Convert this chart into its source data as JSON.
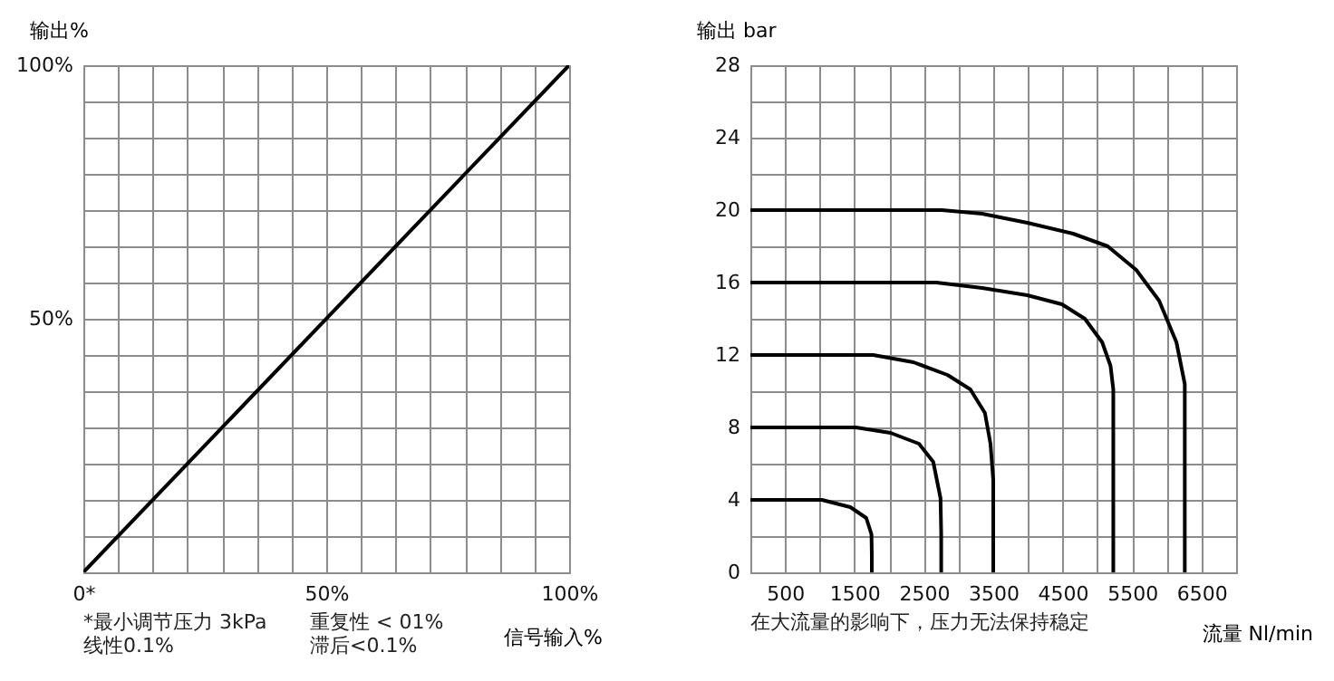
{
  "chart_data": [
    {
      "type": "line",
      "xlabel": "信号输入%",
      "ylabel": "输出%",
      "annotations": [
        "*最小调节压力 3kPa",
        "线性0.1%",
        "重复性 < 01%",
        "滞后<0.1%"
      ],
      "xlim": [
        0,
        100
      ],
      "ylim": [
        0,
        100
      ],
      "xticks": [
        {
          "value": 0,
          "label": "0*"
        },
        {
          "value": 7.1,
          "label": null
        },
        {
          "value": 14.3,
          "label": null
        },
        {
          "value": 21.4,
          "label": null
        },
        {
          "value": 28.6,
          "label": null
        },
        {
          "value": 35.7,
          "label": null
        },
        {
          "value": 42.9,
          "label": null
        },
        {
          "value": 50,
          "label": "50%"
        },
        {
          "value": 57.1,
          "label": null
        },
        {
          "value": 64.3,
          "label": null
        },
        {
          "value": 71.4,
          "label": null
        },
        {
          "value": 78.6,
          "label": null
        },
        {
          "value": 85.7,
          "label": null
        },
        {
          "value": 92.9,
          "label": null
        },
        {
          "value": 100,
          "label": "100%"
        }
      ],
      "yticks": [
        {
          "value": 0,
          "label": null
        },
        {
          "value": 7.1,
          "label": null
        },
        {
          "value": 14.3,
          "label": null
        },
        {
          "value": 21.4,
          "label": null
        },
        {
          "value": 28.6,
          "label": null
        },
        {
          "value": 35.7,
          "label": null
        },
        {
          "value": 42.9,
          "label": null
        },
        {
          "value": 50,
          "label": "50%"
        },
        {
          "value": 57.1,
          "label": null
        },
        {
          "value": 64.3,
          "label": null
        },
        {
          "value": 71.4,
          "label": null
        },
        {
          "value": 78.6,
          "label": null
        },
        {
          "value": 85.7,
          "label": null
        },
        {
          "value": 92.9,
          "label": null
        },
        {
          "value": 100,
          "label": "100%"
        }
      ],
      "grid": true,
      "marker": "none",
      "series": [
        {
          "color": "#000000",
          "x": [
            0,
            100
          ],
          "values": [
            0,
            100
          ]
        }
      ]
    },
    {
      "type": "line",
      "xlabel": "流量 Nl/min",
      "ylabel": "输出 bar",
      "annotations": [
        "在大流量的影响下，压力无法保持稳定"
      ],
      "xlim": [
        0,
        7000
      ],
      "ylim": [
        0,
        28
      ],
      "xticks": [
        {
          "value": 0,
          "label": null
        },
        500,
        {
          "value": 1000,
          "label": null
        },
        1500,
        {
          "value": 2000,
          "label": null
        },
        2500,
        {
          "value": 3000,
          "label": null
        },
        3500,
        {
          "value": 4000,
          "label": null
        },
        4500,
        {
          "value": 5000,
          "label": null
        },
        5500,
        {
          "value": 6000,
          "label": null
        },
        6500,
        {
          "value": 7000,
          "label": null
        }
      ],
      "yticks": [
        0,
        {
          "value": 2,
          "label": null
        },
        4,
        {
          "value": 6,
          "label": null
        },
        8,
        {
          "value": 10,
          "label": null
        },
        12,
        {
          "value": 14,
          "label": null
        },
        16,
        {
          "value": 18,
          "label": null
        },
        20,
        {
          "value": 22,
          "label": null
        },
        24,
        {
          "value": 26,
          "label": null
        },
        28
      ],
      "grid": true,
      "marker": "none",
      "series": [
        {
          "color": "#000000",
          "x": [
            0,
            1030,
            1440,
            1670,
            1745,
            1750,
            1750
          ],
          "values": [
            4,
            4,
            3.6,
            3,
            2.1,
            1,
            0
          ]
        },
        {
          "color": "#000000",
          "x": [
            0,
            1520,
            2020,
            2430,
            2635,
            2740,
            2750,
            2750
          ],
          "values": [
            8,
            8,
            7.7,
            7.1,
            6.1,
            4.1,
            2.1,
            0
          ]
        },
        {
          "color": "#000000",
          "x": [
            0,
            1770,
            2350,
            2840,
            3170,
            3380,
            3460,
            3500,
            3500
          ],
          "values": [
            12,
            12,
            11.6,
            10.9,
            10.1,
            8.8,
            7.1,
            5.1,
            0
          ]
        },
        {
          "color": "#000000",
          "x": [
            0,
            2680,
            3340,
            3990,
            4490,
            4820,
            5070,
            5190,
            5230,
            5230
          ],
          "values": [
            16,
            16,
            15.7,
            15.3,
            14.8,
            14,
            12.7,
            11.4,
            10.1,
            0
          ]
        },
        {
          "color": "#000000",
          "x": [
            0,
            2760,
            3340,
            3990,
            4650,
            5150,
            5560,
            5890,
            6140,
            6260,
            6260
          ],
          "values": [
            20,
            20,
            19.8,
            19.3,
            18.7,
            18,
            16.7,
            15,
            12.7,
            10.4,
            0
          ]
        }
      ]
    }
  ]
}
